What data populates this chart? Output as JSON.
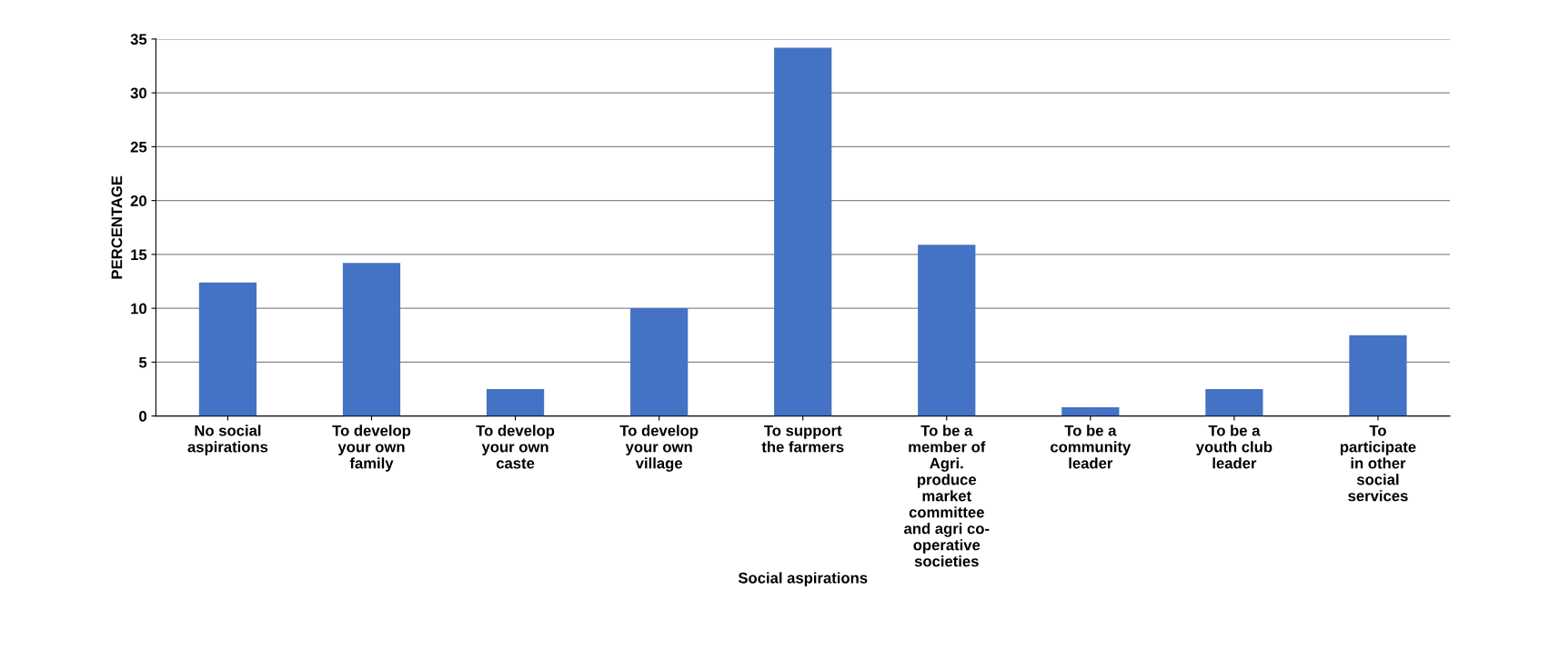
{
  "chart_data": {
    "type": "bar",
    "xlabel": "Social aspirations",
    "ylabel": "PERCENTAGE",
    "categories": [
      "No social\naspirations",
      "To develop\nyour own\nfamily",
      "To develop\nyour own\ncaste",
      "To develop\nyour own\nvillage",
      "To support\nthe farmers",
      "To be a\nmember of\nAgri.\nproduce\nmarket\ncommittee\nand agri co-\noperative\nsocieties",
      "To be a\ncommunity\nleader",
      "To be a\nyouth club\nleader",
      "To\nparticipate\nin other\nsocial\nservices"
    ],
    "values": [
      12.4,
      14.2,
      2.5,
      10,
      34.2,
      15.9,
      0.8,
      2.5,
      7.5
    ],
    "color": "#4472c4",
    "ylim": [
      0,
      35
    ],
    "yticks": [
      0,
      5,
      10,
      15,
      20,
      25,
      30,
      35
    ],
    "grid": "y",
    "legend": false
  }
}
